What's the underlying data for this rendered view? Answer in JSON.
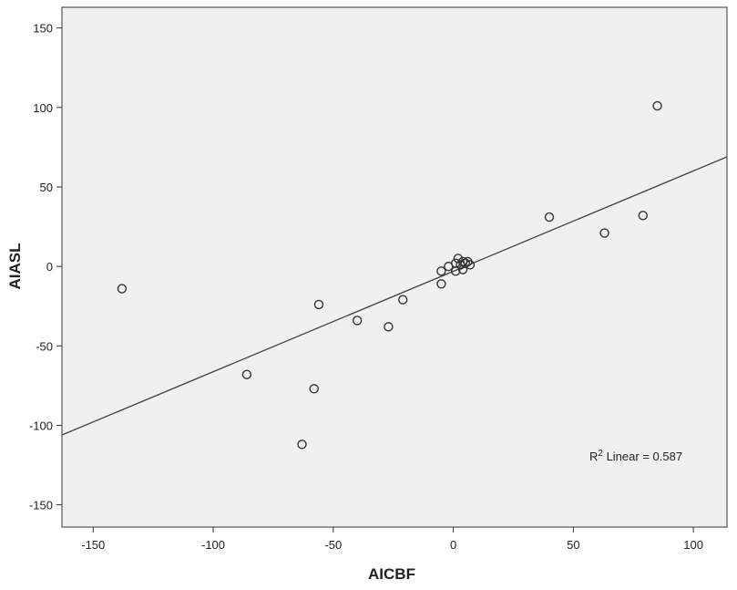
{
  "chart_data": {
    "type": "scatter",
    "xlabel": "AICBF",
    "ylabel": "AIASL",
    "xlim": [
      -163,
      114
    ],
    "ylim": [
      -164,
      163
    ],
    "xticks": [
      -150,
      -100,
      -50,
      0,
      50,
      100
    ],
    "yticks": [
      -150,
      -100,
      -50,
      0,
      50,
      100,
      150
    ],
    "grid": false,
    "colors": {
      "plot_bg": "#f0f0f0",
      "marker_stroke": "#333333",
      "fit_line": "#444444"
    },
    "points": [
      {
        "x": -138,
        "y": -14
      },
      {
        "x": -86,
        "y": -68
      },
      {
        "x": -63,
        "y": -112
      },
      {
        "x": -58,
        "y": -77
      },
      {
        "x": -56,
        "y": -24
      },
      {
        "x": -40,
        "y": -34
      },
      {
        "x": -27,
        "y": -38
      },
      {
        "x": -21,
        "y": -21
      },
      {
        "x": -5,
        "y": -11
      },
      {
        "x": -5,
        "y": -3
      },
      {
        "x": -2,
        "y": 0
      },
      {
        "x": 1,
        "y": -3
      },
      {
        "x": 1,
        "y": 2
      },
      {
        "x": 2,
        "y": 5
      },
      {
        "x": 3,
        "y": 1
      },
      {
        "x": 4,
        "y": -2
      },
      {
        "x": 4,
        "y": 3
      },
      {
        "x": 5,
        "y": 2
      },
      {
        "x": 6,
        "y": 3
      },
      {
        "x": 7,
        "y": 1
      },
      {
        "x": 40,
        "y": 31
      },
      {
        "x": 63,
        "y": 21
      },
      {
        "x": 79,
        "y": 32
      },
      {
        "x": 85,
        "y": 101
      }
    ],
    "fit_line": {
      "slope": 0.6317,
      "intercept": -3.1,
      "label_base": "R",
      "label_sup": "2",
      "label_rest": " Linear = 0.587"
    }
  }
}
